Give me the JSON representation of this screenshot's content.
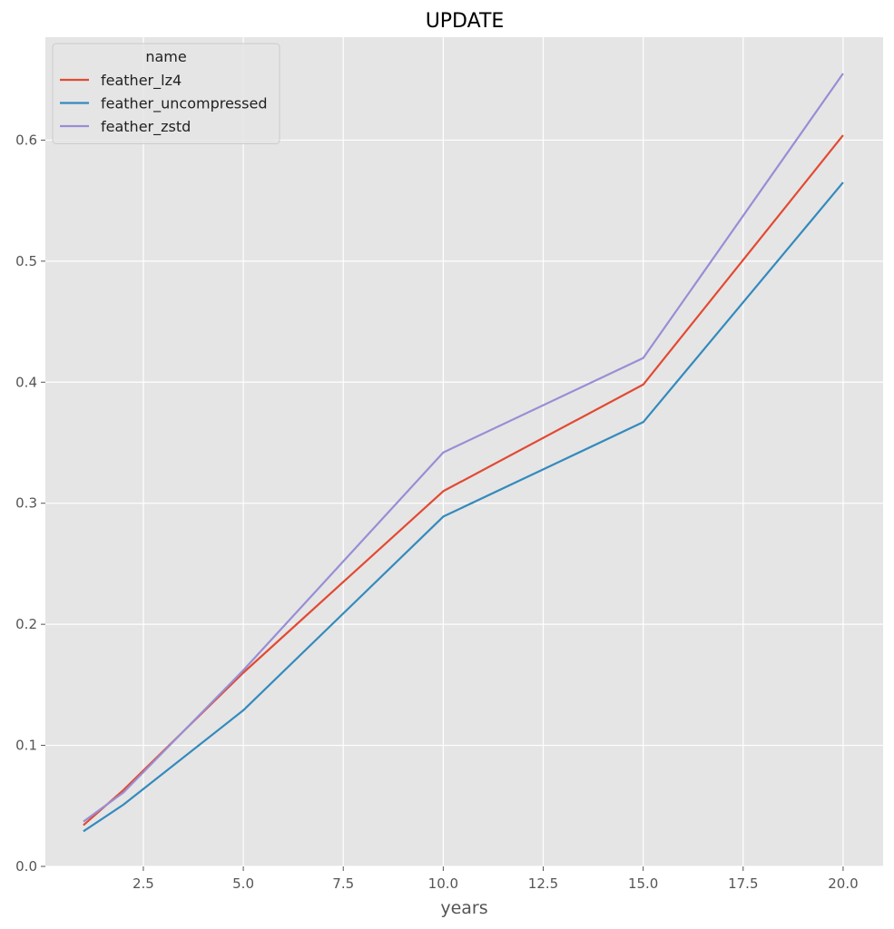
{
  "chart_data": {
    "type": "line",
    "title": "UPDATE",
    "xlabel": "years",
    "ylabel": "",
    "xlim": [
      0.05,
      21.0
    ],
    "ylim": [
      0.0,
      0.685
    ],
    "x_ticks": [
      2.5,
      5.0,
      7.5,
      10.0,
      12.5,
      15.0,
      17.5,
      20.0
    ],
    "x_tick_labels": [
      "2.5",
      "5.0",
      "7.5",
      "10.0",
      "12.5",
      "15.0",
      "17.5",
      "20.0"
    ],
    "y_ticks": [
      0.0,
      0.1,
      0.2,
      0.3,
      0.4,
      0.5,
      0.6
    ],
    "y_tick_labels": [
      "0.0",
      "0.1",
      "0.2",
      "0.3",
      "0.4",
      "0.5",
      "0.6"
    ],
    "grid": true,
    "legend": {
      "title": "name",
      "placement": "top-left"
    },
    "x": [
      1,
      2,
      5,
      10,
      15,
      20
    ],
    "series": [
      {
        "name": "feather_lz4",
        "color": "#E24A33",
        "values": [
          0.034,
          0.063,
          0.16,
          0.31,
          0.398,
          0.604
        ]
      },
      {
        "name": "feather_uncompressed",
        "color": "#348ABD",
        "values": [
          0.029,
          0.051,
          0.129,
          0.289,
          0.367,
          0.565
        ]
      },
      {
        "name": "feather_zstd",
        "color": "#988ED5",
        "values": [
          0.037,
          0.061,
          0.162,
          0.342,
          0.42,
          0.655
        ]
      }
    ]
  },
  "style": {
    "plot_background": "#E5E5E5",
    "grid_color": "#FFFFFF"
  }
}
